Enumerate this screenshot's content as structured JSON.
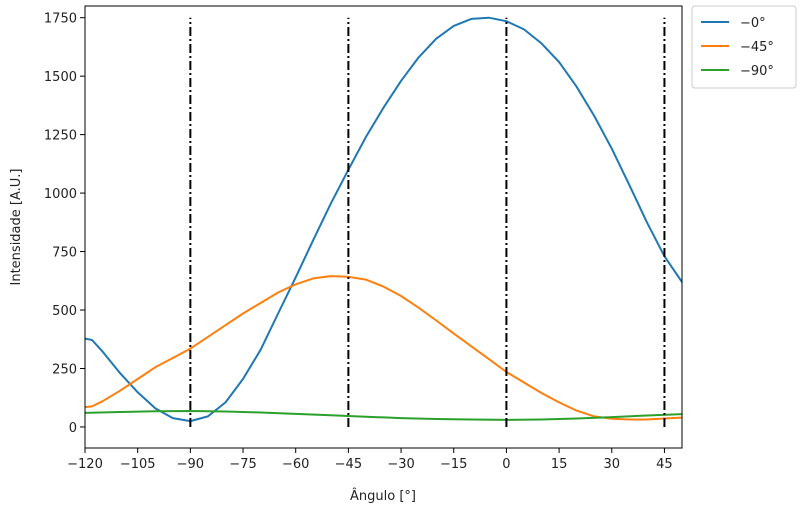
{
  "chart_data": {
    "type": "line",
    "title": "",
    "xlabel": "Ângulo [°]",
    "ylabel": "Intensidade [A.U.]",
    "xlim": [
      -120,
      50
    ],
    "ylim": [
      -90,
      1800
    ],
    "xticks": [
      -120,
      -105,
      -90,
      -75,
      -60,
      -45,
      -30,
      -15,
      0,
      15,
      30,
      45
    ],
    "xtick_labels": [
      "−120",
      "−105",
      "−90",
      "−75",
      "−60",
      "−45",
      "−30",
      "−15",
      "0",
      "15",
      "30",
      "45"
    ],
    "yticks": [
      0,
      250,
      500,
      750,
      1000,
      1250,
      1500,
      1750
    ],
    "ytick_labels": [
      "0",
      "250",
      "500",
      "750",
      "1000",
      "1250",
      "1500",
      "1750"
    ],
    "grid": false,
    "legend_position": "outside-top-right",
    "vlines": {
      "x": [
        -90,
        -45,
        0,
        45
      ],
      "ymin": 0,
      "ymax": 1750,
      "style": "dashdot",
      "color": "#000000"
    },
    "series": [
      {
        "name": "−0°",
        "color": "#1f77b4",
        "x": [
          -120,
          -118,
          -115,
          -110,
          -105,
          -100,
          -95,
          -90,
          -85,
          -80,
          -75,
          -70,
          -65,
          -60,
          -55,
          -50,
          -45,
          -40,
          -35,
          -30,
          -25,
          -20,
          -15,
          -10,
          -5,
          0,
          5,
          10,
          15,
          20,
          25,
          30,
          35,
          40,
          45,
          50
        ],
        "y": [
          378,
          372,
          322,
          230,
          148,
          80,
          38,
          25,
          45,
          105,
          205,
          330,
          485,
          640,
          800,
          955,
          1100,
          1240,
          1365,
          1480,
          1580,
          1660,
          1715,
          1745,
          1750,
          1735,
          1700,
          1640,
          1560,
          1455,
          1330,
          1190,
          1035,
          875,
          730,
          620
        ]
      },
      {
        "name": "−45°",
        "color": "#ff7f0e",
        "x": [
          -120,
          -118,
          -115,
          -110,
          -105,
          -100,
          -95,
          -90,
          -85,
          -80,
          -75,
          -70,
          -65,
          -60,
          -55,
          -50,
          -45,
          -40,
          -35,
          -30,
          -25,
          -20,
          -15,
          -10,
          -5,
          0,
          5,
          10,
          15,
          20,
          25,
          30,
          35,
          40,
          45,
          50
        ],
        "y": [
          85,
          88,
          110,
          155,
          205,
          255,
          295,
          335,
          385,
          435,
          485,
          530,
          575,
          610,
          635,
          645,
          642,
          630,
          600,
          560,
          510,
          455,
          400,
          345,
          290,
          235,
          190,
          145,
          105,
          70,
          45,
          35,
          32,
          32,
          36,
          40
        ]
      },
      {
        "name": "−90°",
        "color": "#2ca02c",
        "x": [
          -120,
          -110,
          -100,
          -90,
          -80,
          -70,
          -60,
          -50,
          -40,
          -30,
          -20,
          -10,
          0,
          10,
          20,
          30,
          40,
          50
        ],
        "y": [
          60,
          64,
          67,
          68,
          66,
          62,
          56,
          50,
          44,
          38,
          34,
          32,
          30,
          32,
          36,
          42,
          49,
          55
        ]
      }
    ]
  }
}
